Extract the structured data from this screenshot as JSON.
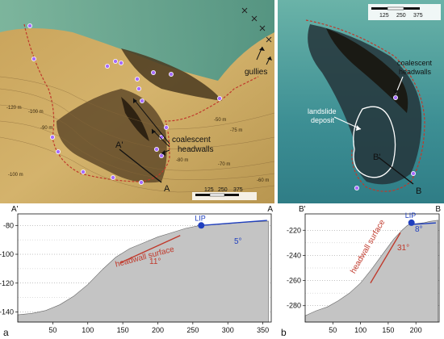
{
  "figure": {
    "panel_a": {
      "letter": "a",
      "map": {
        "labels": {
          "gullies": "gullies",
          "coalescent_headwalls": [
            "coalescent",
            "headwalls"
          ],
          "section_start": "A'",
          "section_end": "A"
        },
        "contours": [
          "-120 m",
          "-100 m",
          "-100 m",
          "-90 m",
          "-80 m",
          "-75 m",
          "-70 m",
          "-60 m",
          "-50 m"
        ],
        "scale_bar": [
          "125",
          "250",
          "375"
        ]
      },
      "profile": {
        "left_label": "A'",
        "right_label": "A",
        "surface_label": "headwall surface",
        "lip_label": "LIP",
        "headwall_angle": "11°",
        "top_angle": "5°"
      }
    },
    "panel_b": {
      "letter": "b",
      "map": {
        "labels": {
          "coalescent_headwalls": [
            "coalescent",
            "headwalls"
          ],
          "landslide_deposit": [
            "landslide",
            "deposit"
          ],
          "section_start": "B'",
          "section_end": "B"
        },
        "scale_bar": [
          "125",
          "250",
          "375"
        ]
      },
      "profile": {
        "left_label": "B'",
        "right_label": "B",
        "surface_label": "headwall surface",
        "lip_label": "LIP",
        "headwall_angle": "31°",
        "top_angle": "8°"
      }
    },
    "colors": {
      "headwall_line": "#c0392b",
      "lip_line": "#1f3fbf",
      "profile_fill": "#c4c4c4",
      "marker": "#a66cff"
    }
  },
  "chart_data": [
    {
      "type": "area",
      "panel": "a",
      "x": [
        0,
        20,
        40,
        60,
        80,
        100,
        120,
        140,
        160,
        180,
        200,
        220,
        240,
        260,
        280,
        300,
        320,
        340,
        358
      ],
      "y": [
        -142,
        -141,
        -139,
        -135,
        -129,
        -121,
        -111,
        -102,
        -96,
        -92,
        -88,
        -85,
        -82,
        -80,
        -79.5,
        -78.8,
        -78,
        -77.4,
        -77
      ],
      "xlim": [
        0,
        362
      ],
      "ylim": [
        -147,
        -72
      ],
      "xticks": [
        50,
        100,
        150,
        200,
        250,
        300,
        350
      ],
      "yticks": [
        -140,
        -120,
        -100,
        -80
      ],
      "grid": true,
      "annotations": {
        "lip": {
          "x": 262,
          "y": -80
        },
        "headwall_line": {
          "x": [
            146,
            232
          ],
          "y": [
            -106,
            -87
          ]
        },
        "lip_line": {
          "x": [
            262,
            356
          ],
          "y": [
            -80,
            -76.5
          ]
        }
      }
    },
    {
      "type": "area",
      "panel": "b",
      "x": [
        0,
        20,
        40,
        60,
        80,
        100,
        120,
        140,
        160,
        175,
        185,
        195,
        205,
        215,
        225,
        240
      ],
      "y": [
        -288,
        -284,
        -281,
        -276,
        -270,
        -262,
        -251,
        -239,
        -227,
        -220,
        -216,
        -215,
        -214.5,
        -214,
        -213,
        -212
      ],
      "xlim": [
        0,
        242
      ],
      "ylim": [
        -293,
        -207
      ],
      "xticks": [
        50,
        100,
        150,
        200
      ],
      "yticks": [
        -280,
        -260,
        -240,
        -220
      ],
      "grid": true,
      "annotations": {
        "lip": {
          "x": 192,
          "y": -214
        },
        "headwall_line": {
          "x": [
            118,
            172
          ],
          "y": [
            -262,
            -222
          ]
        },
        "lip_line": {
          "x": [
            188,
            236
          ],
          "y": [
            -215.5,
            -214.2
          ]
        }
      }
    }
  ]
}
